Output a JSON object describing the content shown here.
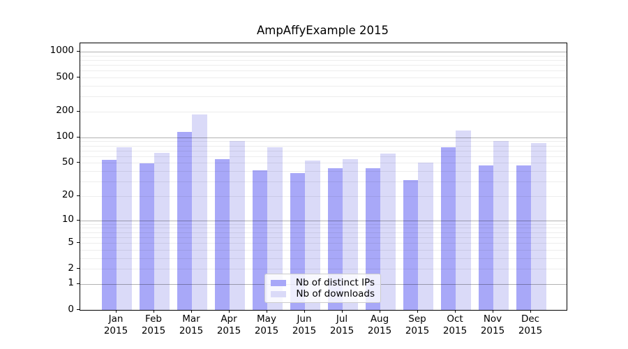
{
  "title": "AmpAffyExample 2015",
  "chart_data": {
    "type": "bar",
    "title": "AmpAffyExample 2015",
    "categories": [
      "Jan",
      "Feb",
      "Mar",
      "Apr",
      "May",
      "Jun",
      "Jul",
      "Aug",
      "Sep",
      "Oct",
      "Nov",
      "Dec"
    ],
    "x_tick_year": "2015",
    "series": [
      {
        "name": "Nb of distinct IPs",
        "color": "#a8a8f8",
        "values": [
          54,
          49,
          115,
          55,
          41,
          38,
          43,
          43,
          31,
          77,
          47,
          47
        ]
      },
      {
        "name": "Nb of downloads",
        "color": "#dadaf8",
        "values": [
          77,
          66,
          187,
          90,
          76,
          53,
          55,
          64,
          50,
          121,
          90,
          85
        ]
      }
    ],
    "xlabel": "",
    "ylabel": "",
    "yscale": "log1p",
    "ylim": [
      0,
      1250
    ],
    "y_ticks": [
      0,
      1,
      2,
      5,
      10,
      20,
      50,
      100,
      200,
      500,
      1000
    ],
    "major_gridlines": [
      1,
      10,
      100,
      1000
    ],
    "minor_gridlines": [
      2,
      3,
      4,
      5,
      6,
      7,
      8,
      9,
      20,
      30,
      40,
      50,
      60,
      70,
      80,
      90,
      200,
      300,
      400,
      500,
      600,
      700,
      800,
      900
    ],
    "grid": true,
    "legend_position": "bottom-center",
    "legend_entries": [
      "Nb of distinct IPs",
      "Nb of downloads"
    ]
  }
}
